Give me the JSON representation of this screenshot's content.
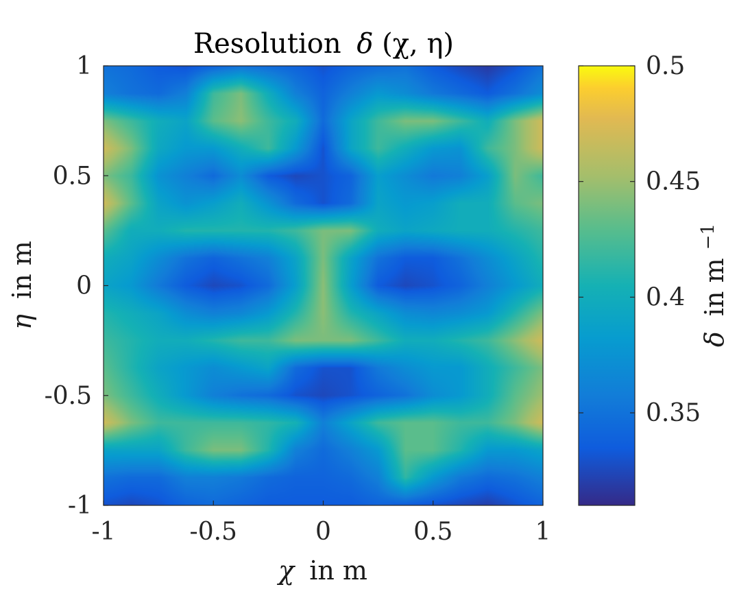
{
  "chart_data": {
    "type": "heatmap",
    "title": "Resolution δ(χ, η)",
    "title_parts": {
      "text": "Resolution",
      "symbol": "δ",
      "args": "(χ, η)"
    },
    "xlabel": "χ in m",
    "xlabel_parts": {
      "symbol": "χ",
      "text": "in m"
    },
    "ylabel": "η in m",
    "ylabel_parts": {
      "symbol": "η",
      "text": "in m"
    },
    "x_range": [
      -1,
      1
    ],
    "y_range": [
      -1,
      1
    ],
    "x_ticks": [
      -1,
      -0.5,
      0,
      0.5,
      1
    ],
    "x_tick_labels": [
      "-1",
      "-0.5",
      "0",
      "0.5",
      "1"
    ],
    "y_ticks": [
      -1,
      -0.5,
      0,
      0.5,
      1
    ],
    "y_tick_labels": [
      "-1",
      "-0.5",
      "0",
      "0.5",
      "1"
    ],
    "colorbar": {
      "label": "δ in m⁻¹",
      "label_parts": {
        "symbol": "δ",
        "text": "in m",
        "exponent": "−1"
      },
      "range": [
        0.31,
        0.5
      ],
      "ticks": [
        0.35,
        0.4,
        0.45,
        0.5
      ],
      "tick_labels": [
        "0.35",
        "0.4",
        "0.45",
        "0.5"
      ],
      "colormap": "parula"
    },
    "grid_size": 17,
    "grid_coords": [
      -1,
      -0.875,
      -0.75,
      -0.625,
      -0.5,
      -0.375,
      -0.25,
      -0.125,
      0,
      0.125,
      0.25,
      0.375,
      0.5,
      0.625,
      0.75,
      0.875,
      1
    ],
    "z_rows_note": "rows ordered from eta = 1 (top) to eta = -1 (bottom); columns from chi = -1 to chi = 1",
    "z": [
      [
        0.35,
        0.345,
        0.335,
        0.33,
        0.34,
        0.35,
        0.345,
        0.34,
        0.33,
        0.34,
        0.345,
        0.35,
        0.335,
        0.325,
        0.318,
        0.33,
        0.35
      ],
      [
        0.36,
        0.35,
        0.345,
        0.36,
        0.42,
        0.44,
        0.4,
        0.36,
        0.34,
        0.36,
        0.38,
        0.37,
        0.355,
        0.345,
        0.335,
        0.35,
        0.37
      ],
      [
        0.44,
        0.42,
        0.4,
        0.39,
        0.43,
        0.445,
        0.42,
        0.4,
        0.345,
        0.39,
        0.42,
        0.44,
        0.44,
        0.42,
        0.4,
        0.44,
        0.47
      ],
      [
        0.47,
        0.44,
        0.395,
        0.38,
        0.38,
        0.4,
        0.42,
        0.38,
        0.33,
        0.39,
        0.42,
        0.4,
        0.38,
        0.375,
        0.42,
        0.44,
        0.47
      ],
      [
        0.44,
        0.42,
        0.375,
        0.36,
        0.345,
        0.37,
        0.335,
        0.325,
        0.33,
        0.34,
        0.385,
        0.37,
        0.355,
        0.36,
        0.385,
        0.44,
        0.42
      ],
      [
        0.47,
        0.43,
        0.39,
        0.375,
        0.385,
        0.4,
        0.375,
        0.345,
        0.33,
        0.345,
        0.39,
        0.38,
        0.385,
        0.4,
        0.4,
        0.43,
        0.44
      ],
      [
        0.43,
        0.4,
        0.4,
        0.41,
        0.41,
        0.41,
        0.41,
        0.42,
        0.44,
        0.44,
        0.4,
        0.39,
        0.395,
        0.4,
        0.4,
        0.41,
        0.42
      ],
      [
        0.4,
        0.39,
        0.37,
        0.35,
        0.34,
        0.35,
        0.36,
        0.39,
        0.44,
        0.39,
        0.35,
        0.335,
        0.335,
        0.35,
        0.37,
        0.39,
        0.41
      ],
      [
        0.39,
        0.38,
        0.355,
        0.335,
        0.325,
        0.33,
        0.345,
        0.385,
        0.445,
        0.385,
        0.335,
        0.325,
        0.33,
        0.34,
        0.36,
        0.38,
        0.4
      ],
      [
        0.41,
        0.4,
        0.39,
        0.37,
        0.36,
        0.365,
        0.38,
        0.41,
        0.445,
        0.41,
        0.39,
        0.37,
        0.365,
        0.37,
        0.38,
        0.41,
        0.44
      ],
      [
        0.42,
        0.41,
        0.4,
        0.4,
        0.41,
        0.42,
        0.42,
        0.44,
        0.44,
        0.44,
        0.42,
        0.4,
        0.4,
        0.41,
        0.42,
        0.445,
        0.47
      ],
      [
        0.43,
        0.41,
        0.39,
        0.38,
        0.37,
        0.38,
        0.39,
        0.345,
        0.33,
        0.33,
        0.355,
        0.37,
        0.38,
        0.38,
        0.4,
        0.42,
        0.44
      ],
      [
        0.44,
        0.42,
        0.4,
        0.38,
        0.36,
        0.35,
        0.345,
        0.33,
        0.325,
        0.33,
        0.34,
        0.35,
        0.37,
        0.38,
        0.4,
        0.43,
        0.45
      ],
      [
        0.47,
        0.44,
        0.42,
        0.42,
        0.42,
        0.42,
        0.415,
        0.405,
        0.36,
        0.39,
        0.42,
        0.43,
        0.43,
        0.42,
        0.42,
        0.44,
        0.47
      ],
      [
        0.39,
        0.39,
        0.39,
        0.42,
        0.44,
        0.44,
        0.41,
        0.36,
        0.345,
        0.36,
        0.38,
        0.43,
        0.43,
        0.41,
        0.38,
        0.38,
        0.39
      ],
      [
        0.35,
        0.345,
        0.345,
        0.36,
        0.36,
        0.355,
        0.345,
        0.34,
        0.34,
        0.345,
        0.36,
        0.415,
        0.38,
        0.355,
        0.345,
        0.35,
        0.36
      ],
      [
        0.33,
        0.325,
        0.33,
        0.34,
        0.345,
        0.34,
        0.335,
        0.335,
        0.335,
        0.335,
        0.34,
        0.335,
        0.33,
        0.325,
        0.32,
        0.33,
        0.34
      ]
    ]
  }
}
